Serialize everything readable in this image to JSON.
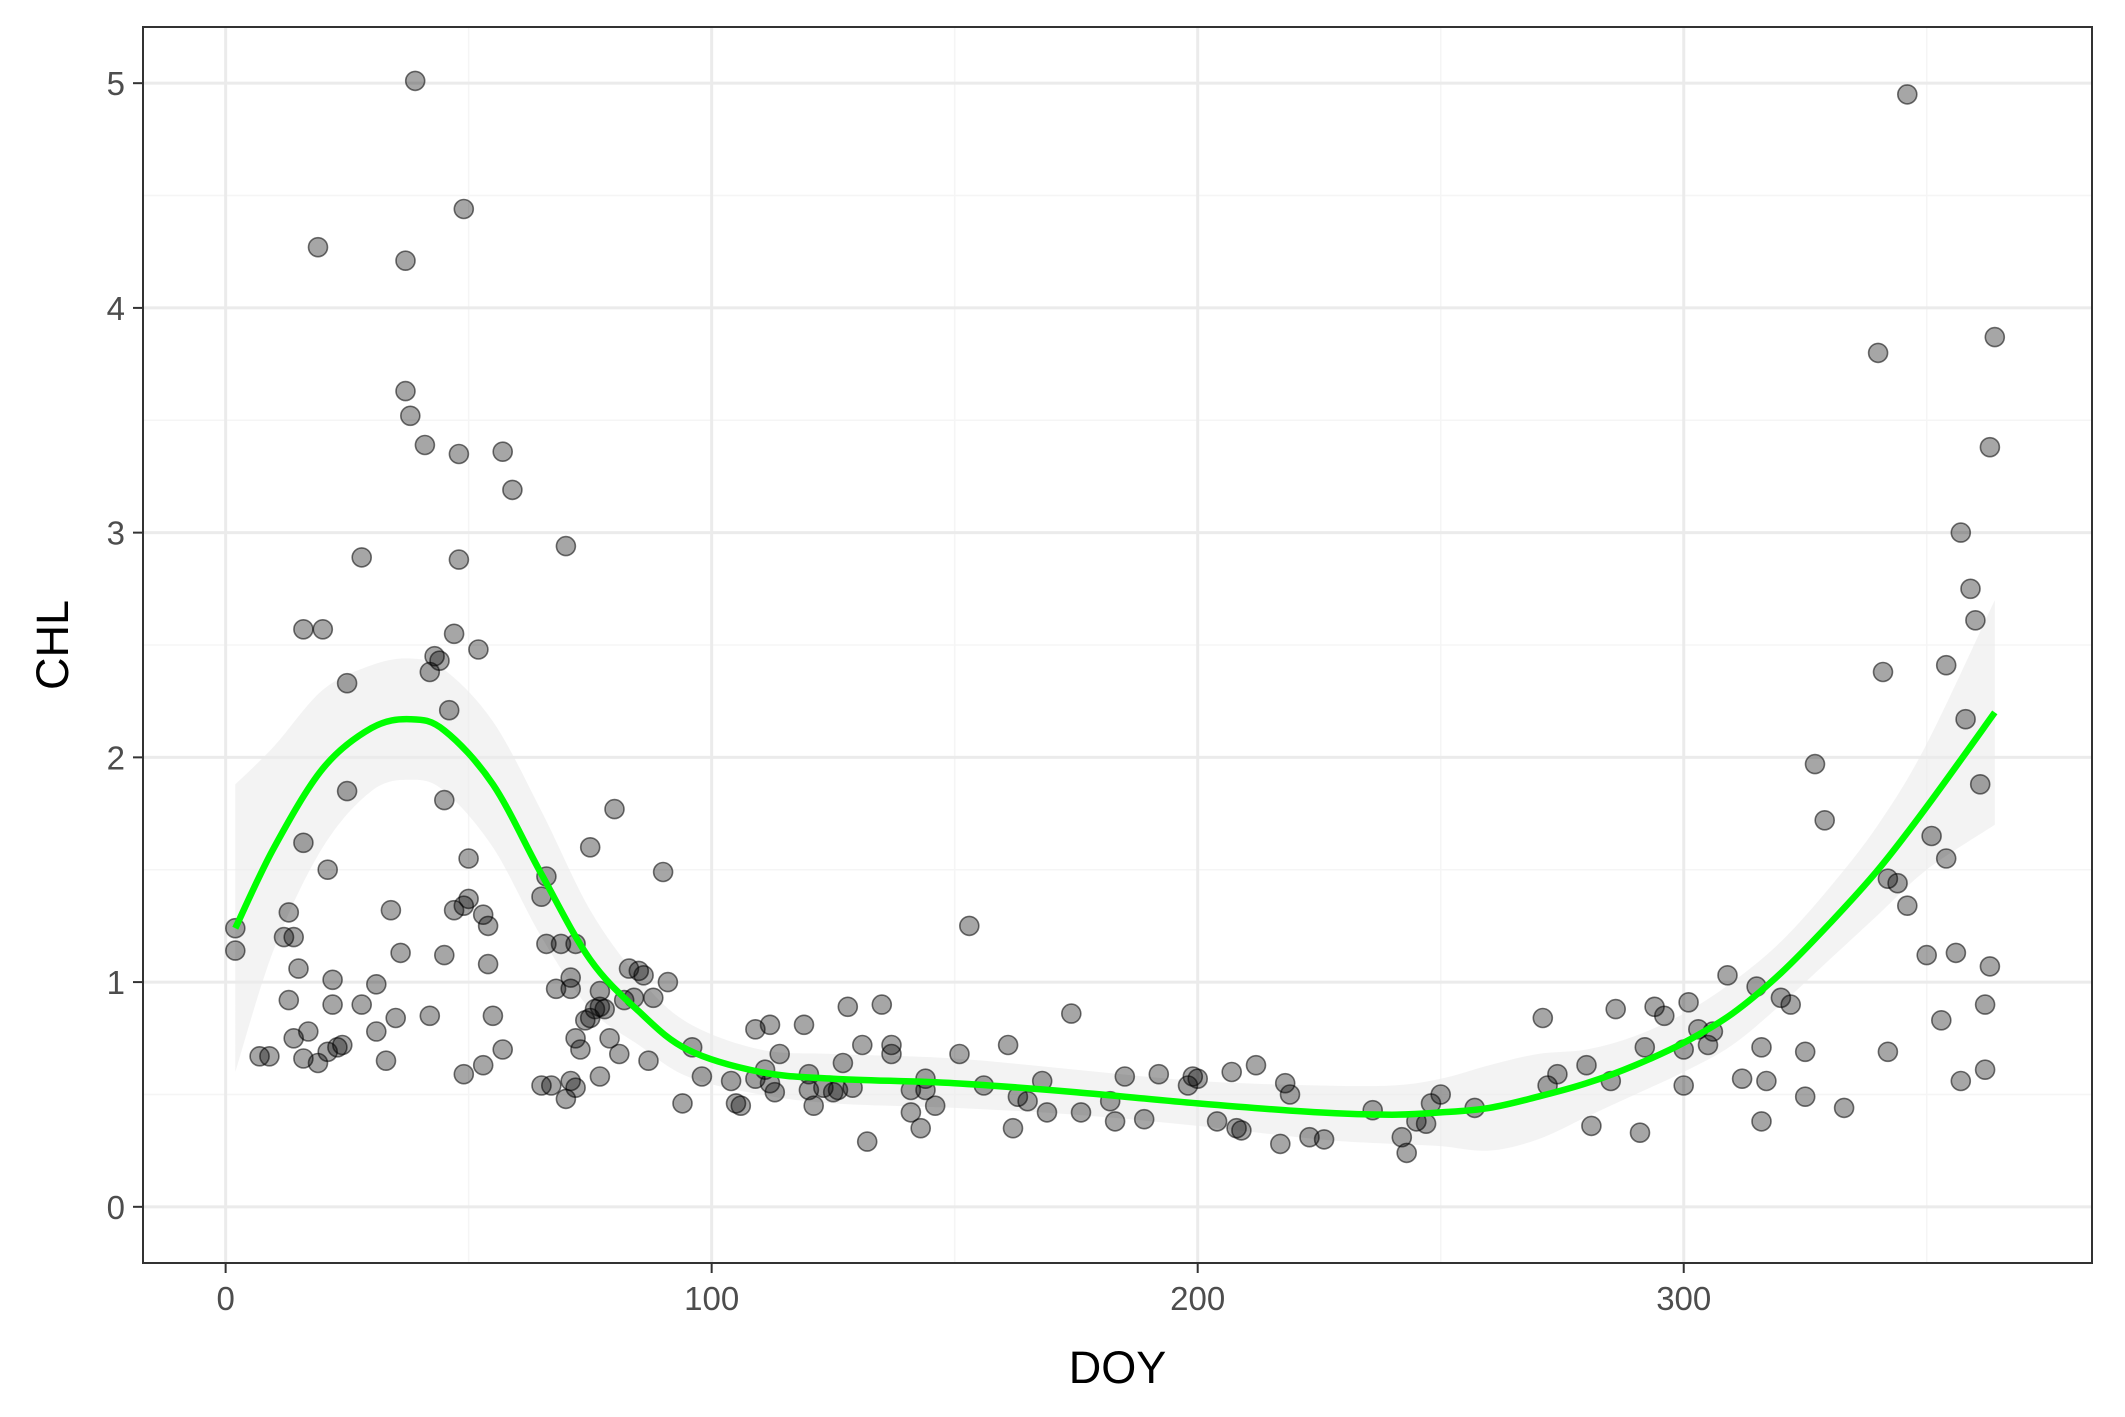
{
  "chart_data": {
    "type": "scatter",
    "xlabel": "DOY",
    "ylabel": "CHL",
    "xlim": [
      -17,
      384
    ],
    "ylim": [
      -0.25,
      5.25
    ],
    "x_ticks": [
      0,
      100,
      200,
      300
    ],
    "x_tick_labels": [
      "0",
      "100",
      "200",
      "300"
    ],
    "y_ticks": [
      0,
      1,
      2,
      3,
      4,
      5
    ],
    "y_tick_labels": [
      "0",
      "1",
      "2",
      "3",
      "4",
      "5"
    ],
    "grid": true,
    "legend": "none",
    "colors": {
      "points": "#000000",
      "points_opacity": 0.35,
      "smooth_line": "#00ff00",
      "ribbon": "#ebebeb",
      "grid_major": "#ebebeb",
      "grid_minor": "#f5f5f5",
      "panel_border": "#333333"
    },
    "points": [
      [
        2,
        1.24
      ],
      [
        2,
        1.14
      ],
      [
        7,
        0.67
      ],
      [
        9,
        0.67
      ],
      [
        12,
        1.2
      ],
      [
        13,
        1.31
      ],
      [
        13,
        0.92
      ],
      [
        14,
        1.2
      ],
      [
        14,
        0.75
      ],
      [
        15,
        1.06
      ],
      [
        16,
        1.62
      ],
      [
        16,
        2.57
      ],
      [
        16,
        0.66
      ],
      [
        17,
        0.78
      ],
      [
        19,
        4.27
      ],
      [
        19,
        0.64
      ],
      [
        20,
        2.57
      ],
      [
        21,
        1.5
      ],
      [
        21,
        0.69
      ],
      [
        22,
        1.01
      ],
      [
        22,
        0.9
      ],
      [
        23,
        0.71
      ],
      [
        24,
        0.72
      ],
      [
        25,
        1.85
      ],
      [
        25,
        2.33
      ],
      [
        28,
        2.89
      ],
      [
        28,
        0.9
      ],
      [
        31,
        0.99
      ],
      [
        31,
        0.78
      ],
      [
        33,
        0.65
      ],
      [
        34,
        1.32
      ],
      [
        35,
        0.84
      ],
      [
        36,
        1.13
      ],
      [
        37,
        4.21
      ],
      [
        37,
        3.63
      ],
      [
        38,
        3.52
      ],
      [
        39,
        5.01
      ],
      [
        41,
        3.39
      ],
      [
        42,
        2.38
      ],
      [
        42,
        0.85
      ],
      [
        43,
        2.45
      ],
      [
        44,
        2.43
      ],
      [
        45,
        1.81
      ],
      [
        45,
        1.12
      ],
      [
        46,
        2.21
      ],
      [
        47,
        2.55
      ],
      [
        47,
        1.32
      ],
      [
        48,
        2.88
      ],
      [
        48,
        3.35
      ],
      [
        49,
        1.34
      ],
      [
        49,
        0.59
      ],
      [
        49,
        4.44
      ],
      [
        50,
        1.37
      ],
      [
        50,
        1.55
      ],
      [
        52,
        2.48
      ],
      [
        53,
        1.3
      ],
      [
        53,
        0.63
      ],
      [
        54,
        1.08
      ],
      [
        54,
        1.25
      ],
      [
        55,
        0.85
      ],
      [
        57,
        0.7
      ],
      [
        57,
        3.36
      ],
      [
        59,
        3.19
      ],
      [
        65,
        1.38
      ],
      [
        65,
        0.54
      ],
      [
        66,
        1.47
      ],
      [
        66,
        1.17
      ],
      [
        67,
        0.54
      ],
      [
        68,
        0.97
      ],
      [
        69,
        1.17
      ],
      [
        70,
        0.48
      ],
      [
        70,
        2.94
      ],
      [
        71,
        1.02
      ],
      [
        71,
        0.97
      ],
      [
        71,
        0.56
      ],
      [
        72,
        0.53
      ],
      [
        72,
        1.17
      ],
      [
        72,
        0.75
      ],
      [
        73,
        0.7
      ],
      [
        74,
        0.83
      ],
      [
        75,
        1.6
      ],
      [
        75,
        0.84
      ],
      [
        76,
        0.88
      ],
      [
        77,
        0.89
      ],
      [
        77,
        0.58
      ],
      [
        77,
        0.96
      ],
      [
        78,
        0.88
      ],
      [
        79,
        0.75
      ],
      [
        80,
        1.77
      ],
      [
        81,
        0.68
      ],
      [
        82,
        0.92
      ],
      [
        83,
        1.06
      ],
      [
        84,
        0.93
      ],
      [
        85,
        1.05
      ],
      [
        86,
        1.03
      ],
      [
        87,
        0.65
      ],
      [
        88,
        0.93
      ],
      [
        90,
        1.49
      ],
      [
        91,
        1.0
      ],
      [
        94,
        0.46
      ],
      [
        96,
        0.71
      ],
      [
        98,
        0.58
      ],
      [
        104,
        0.56
      ],
      [
        105,
        0.46
      ],
      [
        106,
        0.45
      ],
      [
        109,
        0.79
      ],
      [
        109,
        0.57
      ],
      [
        111,
        0.61
      ],
      [
        112,
        0.81
      ],
      [
        112,
        0.55
      ],
      [
        113,
        0.51
      ],
      [
        114,
        0.68
      ],
      [
        119,
        0.81
      ],
      [
        120,
        0.59
      ],
      [
        120,
        0.52
      ],
      [
        121,
        0.45
      ],
      [
        123,
        0.53
      ],
      [
        125,
        0.51
      ],
      [
        126,
        0.52
      ],
      [
        127,
        0.64
      ],
      [
        128,
        0.89
      ],
      [
        129,
        0.53
      ],
      [
        131,
        0.72
      ],
      [
        132,
        0.29
      ],
      [
        135,
        0.9
      ],
      [
        137,
        0.68
      ],
      [
        137,
        0.72
      ],
      [
        141,
        0.52
      ],
      [
        141,
        0.42
      ],
      [
        143,
        0.35
      ],
      [
        144,
        0.52
      ],
      [
        144,
        0.57
      ],
      [
        146,
        0.45
      ],
      [
        151,
        0.68
      ],
      [
        153,
        1.25
      ],
      [
        156,
        0.54
      ],
      [
        161,
        0.72
      ],
      [
        162,
        0.35
      ],
      [
        163,
        0.49
      ],
      [
        165,
        0.47
      ],
      [
        168,
        0.56
      ],
      [
        169,
        0.42
      ],
      [
        174,
        0.86
      ],
      [
        176,
        0.42
      ],
      [
        182,
        0.47
      ],
      [
        183,
        0.38
      ],
      [
        185,
        0.58
      ],
      [
        189,
        0.39
      ],
      [
        192,
        0.59
      ],
      [
        198,
        0.54
      ],
      [
        199,
        0.58
      ],
      [
        200,
        0.57
      ],
      [
        204,
        0.38
      ],
      [
        207,
        0.6
      ],
      [
        208,
        0.35
      ],
      [
        209,
        0.34
      ],
      [
        212,
        0.63
      ],
      [
        217,
        0.28
      ],
      [
        218,
        0.55
      ],
      [
        219,
        0.5
      ],
      [
        223,
        0.31
      ],
      [
        226,
        0.3
      ],
      [
        236,
        0.43
      ],
      [
        242,
        0.31
      ],
      [
        243,
        0.24
      ],
      [
        245,
        0.38
      ],
      [
        247,
        0.37
      ],
      [
        248,
        0.46
      ],
      [
        250,
        0.5
      ],
      [
        257,
        0.44
      ],
      [
        271,
        0.84
      ],
      [
        272,
        0.54
      ],
      [
        274,
        0.59
      ],
      [
        280,
        0.63
      ],
      [
        281,
        0.36
      ],
      [
        285,
        0.56
      ],
      [
        286,
        0.88
      ],
      [
        291,
        0.33
      ],
      [
        292,
        0.71
      ],
      [
        294,
        0.89
      ],
      [
        296,
        0.85
      ],
      [
        300,
        0.54
      ],
      [
        300,
        0.7
      ],
      [
        301,
        0.91
      ],
      [
        303,
        0.79
      ],
      [
        305,
        0.72
      ],
      [
        306,
        0.78
      ],
      [
        309,
        1.03
      ],
      [
        312,
        0.57
      ],
      [
        315,
        0.98
      ],
      [
        316,
        0.71
      ],
      [
        316,
        0.38
      ],
      [
        317,
        0.56
      ],
      [
        320,
        0.93
      ],
      [
        322,
        0.9
      ],
      [
        325,
        0.69
      ],
      [
        325,
        0.49
      ],
      [
        327,
        1.97
      ],
      [
        329,
        1.72
      ],
      [
        333,
        0.44
      ],
      [
        340,
        3.8
      ],
      [
        341,
        2.38
      ],
      [
        342,
        1.46
      ],
      [
        342,
        0.69
      ],
      [
        344,
        1.44
      ],
      [
        346,
        4.95
      ],
      [
        346,
        1.34
      ],
      [
        350,
        1.12
      ],
      [
        351,
        1.65
      ],
      [
        353,
        0.83
      ],
      [
        354,
        1.55
      ],
      [
        354,
        2.41
      ],
      [
        356,
        1.13
      ],
      [
        357,
        3.0
      ],
      [
        357,
        0.56
      ],
      [
        358,
        2.17
      ],
      [
        359,
        2.75
      ],
      [
        360,
        2.61
      ],
      [
        361,
        1.88
      ],
      [
        362,
        0.9
      ],
      [
        362,
        0.61
      ],
      [
        363,
        3.38
      ],
      [
        363,
        1.07
      ],
      [
        364,
        3.87
      ]
    ],
    "smooth": {
      "x": [
        2,
        10,
        20,
        30,
        38,
        45,
        55,
        65,
        75,
        85,
        95,
        110,
        125,
        150,
        175,
        200,
        225,
        240,
        250,
        260,
        270,
        280,
        290,
        300,
        310,
        320,
        330,
        340,
        350,
        364
      ],
      "y": [
        1.24,
        1.6,
        1.95,
        2.13,
        2.17,
        2.12,
        1.88,
        1.48,
        1.1,
        0.87,
        0.7,
        0.6,
        0.57,
        0.55,
        0.51,
        0.46,
        0.42,
        0.41,
        0.42,
        0.44,
        0.49,
        0.55,
        0.63,
        0.73,
        0.86,
        1.04,
        1.26,
        1.5,
        1.78,
        2.2
      ],
      "lower": [
        0.6,
        1.15,
        1.6,
        1.85,
        1.9,
        1.85,
        1.6,
        1.2,
        0.88,
        0.72,
        0.58,
        0.5,
        0.46,
        0.44,
        0.41,
        0.36,
        0.3,
        0.28,
        0.27,
        0.25,
        0.3,
        0.4,
        0.5,
        0.6,
        0.72,
        0.9,
        1.1,
        1.3,
        1.5,
        1.7
      ],
      "upper": [
        1.88,
        2.05,
        2.3,
        2.41,
        2.44,
        2.39,
        2.16,
        1.76,
        1.32,
        1.02,
        0.82,
        0.7,
        0.68,
        0.66,
        0.61,
        0.56,
        0.54,
        0.54,
        0.57,
        0.63,
        0.68,
        0.7,
        0.76,
        0.86,
        1.0,
        1.18,
        1.42,
        1.7,
        2.06,
        2.7
      ]
    }
  }
}
